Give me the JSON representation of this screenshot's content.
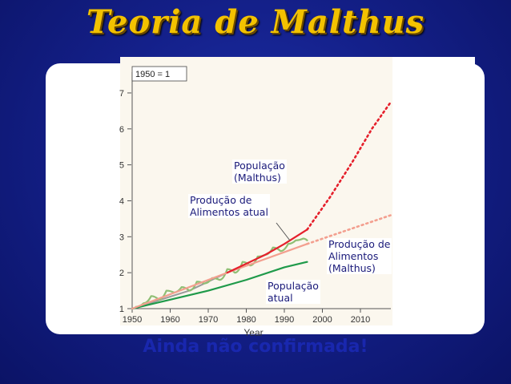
{
  "slide": {
    "title": "Teoria de Malthus",
    "footer": "Ainda não confirmada!"
  },
  "labels": {
    "pop_malthus": "População\n(Malthus)",
    "food_actual": "Produção de\nAlimentos atual",
    "food_malthus": "Produção de\nAlimentos\n(Malthus)",
    "pop_actual": "População\natual"
  },
  "chart_data": {
    "type": "line",
    "baseline_note": "1950 = 1",
    "xlabel": "Year",
    "ylabel": "",
    "xlim": [
      1950,
      2018
    ],
    "ylim": [
      1,
      7.4
    ],
    "xticks": [
      1950,
      1960,
      1970,
      1980,
      1990,
      2000,
      2010
    ],
    "yticks": [
      1,
      2,
      3,
      4,
      5,
      6,
      7
    ],
    "series": [
      {
        "name": "Produção de Alimentos atual",
        "color": "#8fbf74",
        "style": "wavy",
        "points": [
          [
            1951,
            1.05
          ],
          [
            1953,
            1.15
          ],
          [
            1955,
            1.35
          ],
          [
            1957,
            1.25
          ],
          [
            1959,
            1.5
          ],
          [
            1961,
            1.45
          ],
          [
            1963,
            1.6
          ],
          [
            1965,
            1.5
          ],
          [
            1967,
            1.75
          ],
          [
            1969,
            1.7
          ],
          [
            1971,
            1.85
          ],
          [
            1973,
            1.8
          ],
          [
            1975,
            2.1
          ],
          [
            1977,
            2.0
          ],
          [
            1979,
            2.3
          ],
          [
            1981,
            2.2
          ],
          [
            1983,
            2.45
          ],
          [
            1985,
            2.5
          ],
          [
            1987,
            2.7
          ],
          [
            1989,
            2.6
          ],
          [
            1991,
            2.8
          ],
          [
            1993,
            2.9
          ],
          [
            1995,
            2.95
          ],
          [
            1996,
            2.9
          ]
        ]
      },
      {
        "name": "População atual",
        "color": "#1f9a4a",
        "style": "solid",
        "points": [
          [
            1950,
            1.0
          ],
          [
            1960,
            1.25
          ],
          [
            1970,
            1.5
          ],
          [
            1980,
            1.8
          ],
          [
            1990,
            2.15
          ],
          [
            1996,
            2.3
          ]
        ]
      },
      {
        "name": "Produção de Alimentos (Malthus)",
        "color": "#f39f8f",
        "style": "solid",
        "points": [
          [
            1950,
            1.0
          ],
          [
            1975,
            2.0
          ],
          [
            1996,
            2.8
          ]
        ]
      },
      {
        "name": "Produção de Alimentos (Malthus) projeção",
        "color": "#f39f8f",
        "style": "dotted",
        "points": [
          [
            1996,
            2.8
          ],
          [
            2018,
            3.6
          ]
        ]
      },
      {
        "name": "População (Malthus)",
        "color": "#e5202c",
        "style": "solid",
        "points": [
          [
            1975,
            2.0
          ],
          [
            1985,
            2.5
          ],
          [
            1990,
            2.8
          ],
          [
            1996,
            3.2
          ]
        ]
      },
      {
        "name": "População (Malthus) projeção",
        "color": "#e5202c",
        "style": "dotted",
        "points": [
          [
            1996,
            3.2
          ],
          [
            2002,
            4.1
          ],
          [
            2008,
            5.1
          ],
          [
            2013,
            6.0
          ],
          [
            2018,
            6.75
          ]
        ]
      }
    ],
    "gray_points": [
      [
        1950,
        1.0
      ],
      [
        1965,
        1.5
      ],
      [
        1975,
        2.0
      ]
    ]
  }
}
